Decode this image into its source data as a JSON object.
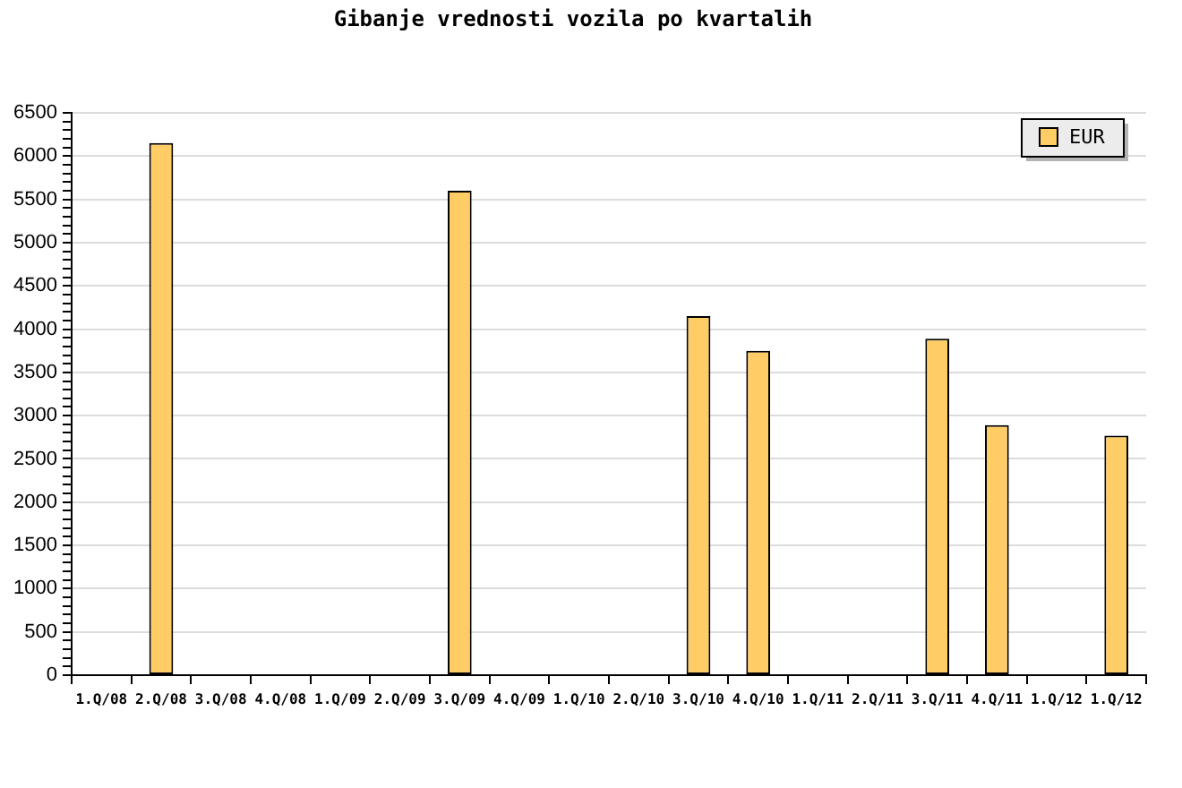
{
  "chart_data": {
    "type": "bar",
    "title": "Gibanje vrednosti vozila po kvartalih",
    "categories": [
      "1.Q/08",
      "2.Q/08",
      "3.Q/08",
      "4.Q/08",
      "1.Q/09",
      "2.Q/09",
      "3.Q/09",
      "4.Q/09",
      "1.Q/10",
      "2.Q/10",
      "3.Q/10",
      "4.Q/10",
      "1.Q/11",
      "2.Q/11",
      "3.Q/11",
      "4.Q/11",
      "1.Q/12",
      "1.Q/12"
    ],
    "series": [
      {
        "name": "EUR",
        "color": "#ffcc66",
        "values": [
          null,
          6150,
          null,
          null,
          null,
          null,
          5600,
          null,
          null,
          null,
          4150,
          3750,
          null,
          null,
          3890,
          2890,
          null,
          2770
        ]
      }
    ],
    "ylim": [
      0,
      6500
    ],
    "yticks": [
      0,
      {
        "value": 100,
        "label": null
      },
      {
        "value": 200,
        "label": null
      },
      {
        "value": 300,
        "label": null
      },
      {
        "value": 400,
        "label": null
      },
      500,
      {
        "value": 600,
        "label": null
      },
      {
        "value": 700,
        "label": null
      },
      {
        "value": 800,
        "label": null
      },
      {
        "value": 900,
        "label": null
      },
      1000,
      {
        "value": 1100,
        "label": null
      },
      {
        "value": 1200,
        "label": null
      },
      {
        "value": 1300,
        "label": null
      },
      {
        "value": 1400,
        "label": null
      },
      1500,
      {
        "value": 1600,
        "label": null
      },
      {
        "value": 1700,
        "label": null
      },
      {
        "value": 1800,
        "label": null
      },
      {
        "value": 1900,
        "label": null
      },
      2000,
      {
        "value": 2100,
        "label": null
      },
      {
        "value": 2200,
        "label": null
      },
      {
        "value": 2300,
        "label": null
      },
      {
        "value": 2400,
        "label": null
      },
      2500,
      {
        "value": 2600,
        "label": null
      },
      {
        "value": 2700,
        "label": null
      },
      {
        "value": 2800,
        "label": null
      },
      {
        "value": 2900,
        "label": null
      },
      3000,
      {
        "value": 3100,
        "label": null
      },
      {
        "value": 3200,
        "label": null
      },
      {
        "value": 3300,
        "label": null
      },
      {
        "value": 3400,
        "label": null
      },
      3500,
      {
        "value": 3600,
        "label": null
      },
      {
        "value": 3700,
        "label": null
      },
      {
        "value": 3800,
        "label": null
      },
      {
        "value": 3900,
        "label": null
      },
      4000,
      {
        "value": 4100,
        "label": null
      },
      {
        "value": 4200,
        "label": null
      },
      {
        "value": 4300,
        "label": null
      },
      {
        "value": 4400,
        "label": null
      },
      4500,
      {
        "value": 4600,
        "label": null
      },
      {
        "value": 4700,
        "label": null
      },
      {
        "value": 4800,
        "label": null
      },
      {
        "value": 4900,
        "label": null
      },
      5000,
      {
        "value": 5100,
        "label": null
      },
      {
        "value": 5200,
        "label": null
      },
      {
        "value": 5300,
        "label": null
      },
      {
        "value": 5400,
        "label": null
      },
      5500,
      {
        "value": 5600,
        "label": null
      },
      {
        "value": 5700,
        "label": null
      },
      {
        "value": 5800,
        "label": null
      },
      {
        "value": 5900,
        "label": null
      },
      6000,
      {
        "value": 6100,
        "label": null
      },
      {
        "value": 6200,
        "label": null
      },
      {
        "value": 6300,
        "label": null
      },
      {
        "value": 6400,
        "label": null
      },
      6500
    ],
    "grid": "y",
    "legend": "top right"
  }
}
